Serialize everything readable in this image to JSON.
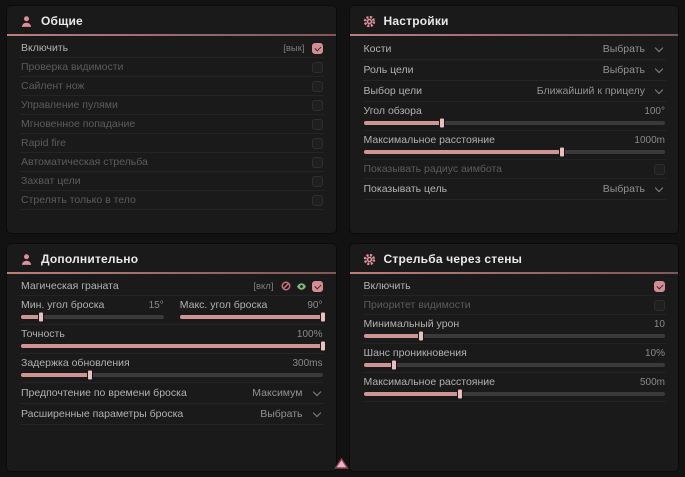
{
  "colors": {
    "accent_pink": "#d38d93",
    "slider_fill": "#cf9494",
    "icon_green": "#83b578",
    "icon_red": "#cb6f7a",
    "panel_bg": "#1a1a1a",
    "page_bg": "#121212"
  },
  "panels": [
    {
      "id": "general",
      "title": "Общие",
      "icon": "person-icon",
      "rows": [
        {
          "type": "toggle",
          "label": "Включить",
          "hint": "[вык]",
          "checked": true,
          "dim": false
        },
        {
          "type": "toggle",
          "label": "Проверка видимости",
          "checked": false,
          "dim": true
        },
        {
          "type": "toggle",
          "label": "Сайлент нож",
          "checked": false,
          "dim": true
        },
        {
          "type": "toggle",
          "label": "Управление пулями",
          "checked": false,
          "dim": true
        },
        {
          "type": "toggle",
          "label": "Мгновенное попадание",
          "checked": false,
          "dim": true
        },
        {
          "type": "toggle",
          "label": "Rapid fire",
          "checked": false,
          "dim": true
        },
        {
          "type": "toggle",
          "label": "Автоматическая стрельба",
          "checked": false,
          "dim": true
        },
        {
          "type": "toggle",
          "label": "Захват цели",
          "checked": false,
          "dim": true
        },
        {
          "type": "toggle",
          "label": "Стрелять только в тело",
          "checked": false,
          "dim": true
        }
      ]
    },
    {
      "id": "settings",
      "title": "Настройки",
      "icon": "gear-icon",
      "rows": [
        {
          "type": "dropdown",
          "label": "Кости",
          "value": "Выбрать"
        },
        {
          "type": "dropdown",
          "label": "Роль цели",
          "value": "Выбрать"
        },
        {
          "type": "dropdown",
          "label": "Выбор цели",
          "value": "Ближайший к прицелу"
        },
        {
          "type": "slider",
          "label": "Угол обзора",
          "value": "100°",
          "fill": 26
        },
        {
          "type": "slider",
          "label": "Максимальное расстояние",
          "value": "1000m",
          "fill": 66
        },
        {
          "type": "toggle",
          "label": "Показывать радиус аимбота",
          "checked": false,
          "dim": true
        },
        {
          "type": "dropdown",
          "label": "Показывать цель",
          "value": "Выбрать"
        }
      ]
    },
    {
      "id": "additional",
      "title": "Дополнительно",
      "icon": "person-icon",
      "rows": [
        {
          "type": "toggle",
          "label": "Магическая граната",
          "hint": "[вкл]",
          "checked": true,
          "dim": false,
          "icons": [
            {
              "name": "crossed-circle-icon",
              "color": "#cb6f7a"
            },
            {
              "name": "eye-icon",
              "color": "#83b578"
            }
          ]
        },
        {
          "type": "slider-pair",
          "left": {
            "label": "Мин. угол броска",
            "value": "15°",
            "fill": 14
          },
          "right": {
            "label": "Макс. угол броска",
            "value": "90°",
            "fill": 100
          }
        },
        {
          "type": "slider",
          "label": "Точность",
          "value": "100%",
          "fill": 100
        },
        {
          "type": "slider",
          "label": "Задержка обновления",
          "value": "300ms",
          "fill": 23
        },
        {
          "type": "dropdown",
          "label": "Предпочтение по времени броска",
          "value": "Максимум"
        },
        {
          "type": "dropdown",
          "label": "Расширенные параметры броска",
          "value": "Выбрать"
        }
      ]
    },
    {
      "id": "wallshoot",
      "title": "Стрельба через стены",
      "icon": "gear-icon",
      "rows": [
        {
          "type": "toggle",
          "label": "Включить",
          "checked": true,
          "dim": false
        },
        {
          "type": "toggle",
          "label": "Приоритет видимости",
          "checked": false,
          "dim": true
        },
        {
          "type": "slider",
          "label": "Минимальный урон",
          "value": "10",
          "fill": 19
        },
        {
          "type": "slider",
          "label": "Шанс проникновения",
          "value": "10%",
          "fill": 10
        },
        {
          "type": "slider",
          "label": "Максимальное расстояние",
          "value": "500m",
          "fill": 32
        }
      ]
    }
  ]
}
